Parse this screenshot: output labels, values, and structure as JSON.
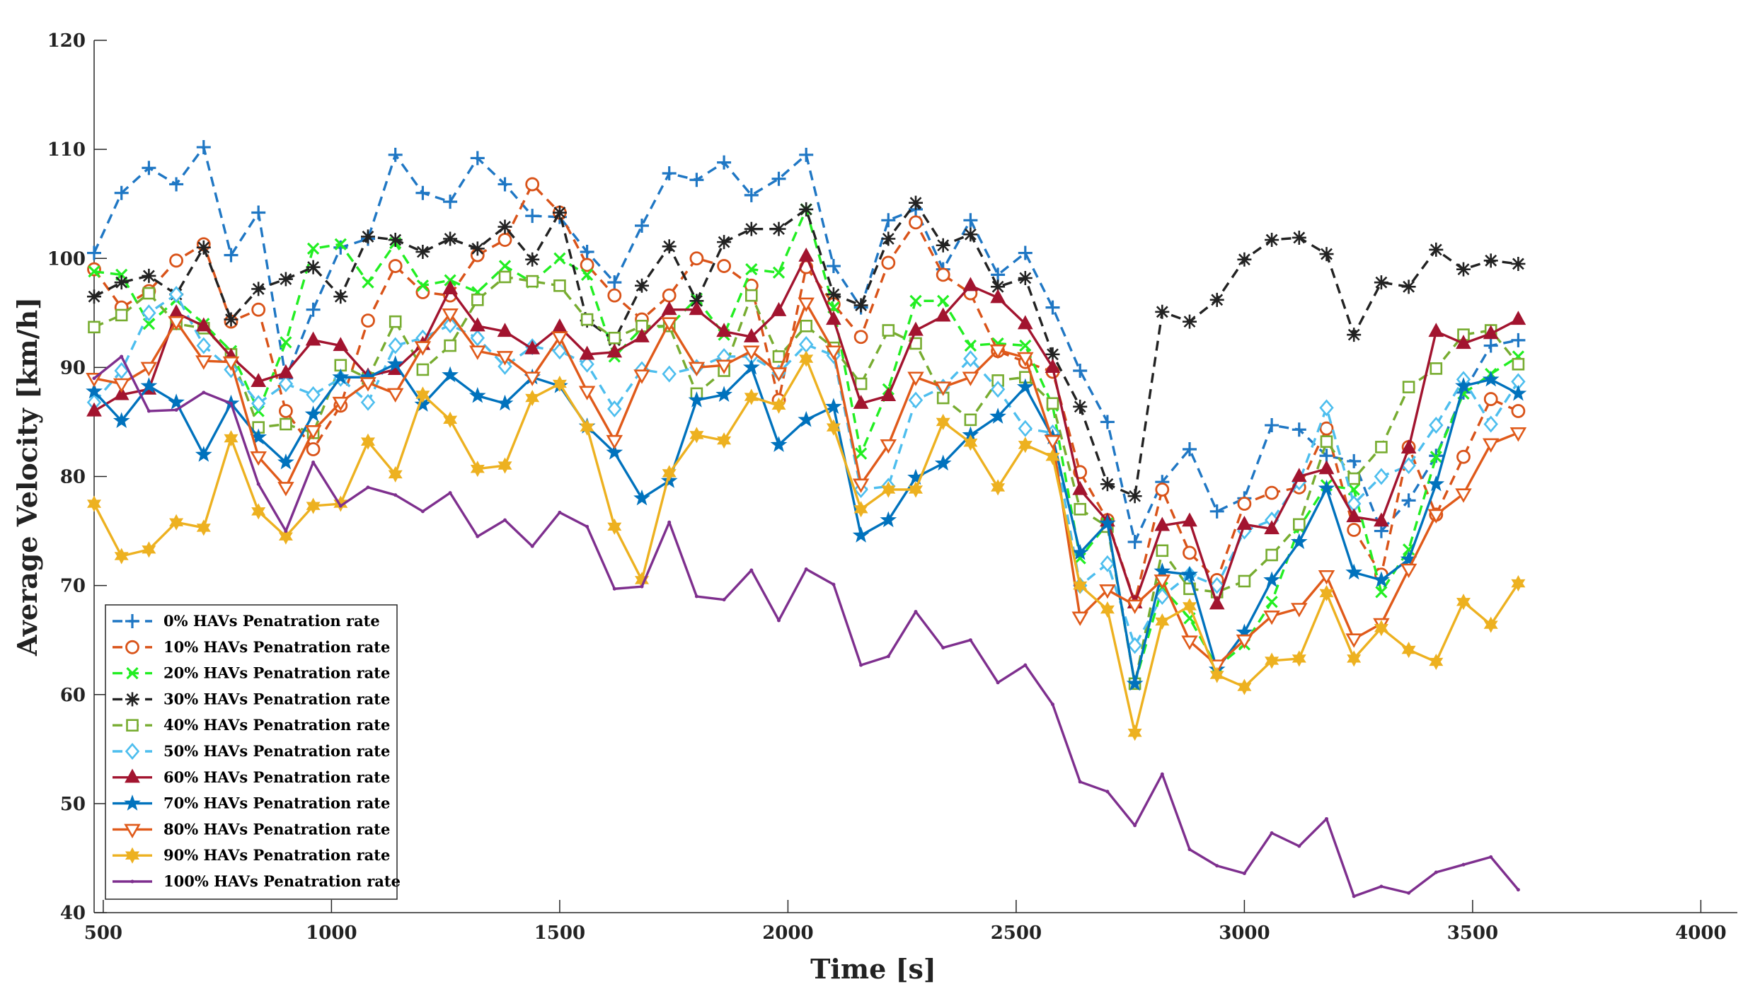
{
  "chart_data": {
    "type": "line",
    "title": "",
    "xlabel": "Time [s]",
    "ylabel": "Average Velocity [km/h]",
    "xlim": [
      480,
      4080
    ],
    "ylim": [
      40,
      120
    ],
    "xticks": [
      500,
      1000,
      1500,
      2000,
      2500,
      3000,
      3500,
      4000
    ],
    "yticks": [
      40,
      50,
      60,
      70,
      80,
      90,
      100,
      110,
      120
    ],
    "x": [
      480,
      540,
      600,
      660,
      720,
      780,
      840,
      900,
      960,
      1020,
      1080,
      1140,
      1200,
      1260,
      1320,
      1380,
      1440,
      1500,
      1560,
      1620,
      1680,
      1740,
      1800,
      1860,
      1920,
      1980,
      2040,
      2100,
      2160,
      2220,
      2280,
      2340,
      2400,
      2460,
      2520,
      2580,
      2640,
      2700,
      2760,
      2820,
      2880,
      2940,
      3000,
      3060,
      3120,
      3180,
      3240,
      3300,
      3360,
      3420,
      3480,
      3540,
      3600
    ],
    "legend_position": "bottom-left",
    "series": [
      {
        "name": "0% HAVs Penatration rate",
        "color": "#1f77c4",
        "dash": "dashed",
        "marker": "plus",
        "values": [
          100.5,
          106.0,
          108.3,
          106.8,
          110.2,
          100.3,
          104.2,
          89.0,
          95.3,
          101.0,
          101.8,
          109.5,
          106.0,
          105.2,
          109.2,
          106.8,
          103.9,
          103.8,
          100.6,
          97.8,
          103.0,
          107.8,
          107.2,
          108.8,
          105.8,
          107.3,
          109.5,
          99.3,
          95.5,
          103.5,
          104.5,
          99.0,
          103.5,
          98.5,
          100.5,
          95.5,
          89.7,
          85.0,
          74.0,
          79.5,
          82.5,
          76.8,
          78.0,
          84.7,
          84.3,
          81.9,
          81.4,
          75.0,
          77.8,
          81.9,
          87.7,
          92.0,
          92.5
        ]
      },
      {
        "name": "10% HAVs Penatration rate",
        "color": "#d95319",
        "dash": "dashed",
        "marker": "circle",
        "values": [
          99.0,
          95.5,
          97.0,
          99.8,
          101.3,
          94.2,
          95.3,
          86.0,
          82.5,
          86.5,
          94.3,
          99.3,
          96.9,
          96.6,
          100.3,
          101.7,
          106.8,
          104.2,
          99.4,
          96.6,
          94.4,
          96.6,
          100.0,
          99.3,
          97.5,
          87.0,
          99.2,
          95.8,
          92.8,
          99.6,
          103.3,
          98.5,
          96.8,
          91.5,
          90.5,
          89.6,
          80.4,
          76.0,
          68.5,
          78.8,
          73.0,
          70.5,
          77.5,
          78.5,
          79.0,
          84.4,
          75.1,
          71.0,
          82.7,
          76.5,
          81.8,
          87.1,
          86.0
        ]
      },
      {
        "name": "20% HAVs Penatration rate",
        "color": "#22ee22",
        "dash": "dashed",
        "marker": "x",
        "values": [
          98.8,
          98.5,
          94.0,
          96.2,
          94.0,
          91.5,
          86.0,
          92.3,
          100.9,
          101.3,
          97.8,
          101.4,
          97.5,
          98.0,
          96.9,
          99.3,
          97.8,
          100.0,
          98.5,
          91.0,
          93.6,
          93.8,
          96.3,
          93.0,
          99.0,
          98.7,
          104.5,
          95.5,
          82.1,
          88.0,
          96.1,
          96.1,
          92.0,
          92.2,
          92.0,
          86.5,
          72.5,
          75.7,
          61.0,
          69.8,
          67.0,
          62.5,
          64.6,
          68.5,
          75.3,
          79.2,
          78.8,
          69.4,
          73.3,
          81.8,
          87.6,
          89.4,
          91.0
        ]
      },
      {
        "name": "30% HAVs Penatration rate",
        "color": "#222222",
        "dash": "dashed",
        "marker": "asterisk",
        "values": [
          96.5,
          97.8,
          98.4,
          96.7,
          101.0,
          94.4,
          97.2,
          98.1,
          99.2,
          96.5,
          102.0,
          101.7,
          100.6,
          101.8,
          100.9,
          102.9,
          99.9,
          104.2,
          94.3,
          92.5,
          97.5,
          101.1,
          96.1,
          101.5,
          102.7,
          102.7,
          104.5,
          96.7,
          95.7,
          101.8,
          105.1,
          101.2,
          102.2,
          97.4,
          98.2,
          91.2,
          86.4,
          79.3,
          78.2,
          95.1,
          94.2,
          96.2,
          99.9,
          101.7,
          101.9,
          100.4,
          93.0,
          97.8,
          97.4,
          100.8,
          99.0,
          99.8,
          99.5
        ]
      },
      {
        "name": "40% HAVs Penatration rate",
        "color": "#77ac30",
        "dash": "dashed",
        "marker": "square",
        "values": [
          93.7,
          94.8,
          96.8,
          94.0,
          93.6,
          91.2,
          84.5,
          84.8,
          84.0,
          90.2,
          89.0,
          94.2,
          89.8,
          92.0,
          96.2,
          98.3,
          97.9,
          97.5,
          94.4,
          92.7,
          93.8,
          93.8,
          87.6,
          89.7,
          96.6,
          91.0,
          93.8,
          91.8,
          88.5,
          93.4,
          92.2,
          87.2,
          85.2,
          88.8,
          89.1,
          86.7,
          77.0,
          75.4,
          61.0,
          73.2,
          69.7,
          69.4,
          70.4,
          72.8,
          75.6,
          83.2,
          79.8,
          82.7,
          88.2,
          89.9,
          93.0,
          93.4,
          90.3
        ]
      },
      {
        "name": "50% HAVs Penatration rate",
        "color": "#4dbeee",
        "dash": "dashed",
        "marker": "diamond",
        "values": [
          86.8,
          89.7,
          95.0,
          96.7,
          92.0,
          89.8,
          86.7,
          88.5,
          87.5,
          89.0,
          86.8,
          92.0,
          92.7,
          93.9,
          92.7,
          90.1,
          91.9,
          91.5,
          90.3,
          86.2,
          89.8,
          89.4,
          90.0,
          91.0,
          91.0,
          89.5,
          92.1,
          91.1,
          78.8,
          79.1,
          87.0,
          88.2,
          90.8,
          88.0,
          84.4,
          84.0,
          70.0,
          72.0,
          64.5,
          69.0,
          71.0,
          70.0,
          75.0,
          76.0,
          79.5,
          86.3,
          77.5,
          80.0,
          81.0,
          84.7,
          88.9,
          84.8,
          88.7
        ]
      },
      {
        "name": "60% HAVs Penatration rate",
        "color": "#a2142f",
        "dash": "solid",
        "marker": "triangle-up",
        "values": [
          86.0,
          87.5,
          88.0,
          95.0,
          93.8,
          91.0,
          88.7,
          89.5,
          92.5,
          92.0,
          89.2,
          89.8,
          92.1,
          97.2,
          93.8,
          93.3,
          91.7,
          93.7,
          91.2,
          91.4,
          92.8,
          95.3,
          95.3,
          93.3,
          92.8,
          95.2,
          100.2,
          94.4,
          86.7,
          87.4,
          93.4,
          94.7,
          97.5,
          96.4,
          94.0,
          90.0,
          78.8,
          75.9,
          68.4,
          75.5,
          75.9,
          68.3,
          75.6,
          75.2,
          80.0,
          80.7,
          76.3,
          75.9,
          82.6,
          93.3,
          92.2,
          93.1,
          94.4
        ]
      },
      {
        "name": "70% HAVs Penatration rate",
        "color": "#0072bd",
        "dash": "solid",
        "marker": "star",
        "values": [
          87.8,
          85.1,
          88.3,
          86.8,
          82.0,
          86.7,
          83.6,
          81.3,
          85.7,
          89.1,
          89.1,
          90.3,
          86.6,
          89.3,
          87.4,
          86.7,
          89.1,
          88.3,
          84.6,
          82.2,
          78.0,
          79.6,
          87.0,
          87.5,
          90.0,
          82.9,
          85.2,
          86.4,
          74.6,
          76.0,
          79.9,
          81.2,
          83.8,
          85.5,
          88.2,
          83.6,
          73.0,
          75.7,
          61.0,
          71.3,
          71.0,
          62.3,
          65.7,
          70.5,
          74.0,
          78.9,
          71.2,
          70.5,
          72.4,
          79.3,
          88.3,
          88.9,
          87.6
        ]
      },
      {
        "name": "80% HAVs Penatration rate",
        "color": "#e05a1a",
        "dash": "solid",
        "marker": "triangle-down",
        "values": [
          89.0,
          88.5,
          90.0,
          94.2,
          90.6,
          90.5,
          81.8,
          79.0,
          84.2,
          86.8,
          88.6,
          87.6,
          91.9,
          94.9,
          91.5,
          91.0,
          89.1,
          92.8,
          87.8,
          83.3,
          89.3,
          94.1,
          90.0,
          90.2,
          91.5,
          89.5,
          95.9,
          91.5,
          79.3,
          82.9,
          89.1,
          88.2,
          89.1,
          91.6,
          90.9,
          83.3,
          67.1,
          69.6,
          68.2,
          70.5,
          64.9,
          62.7,
          65.0,
          67.2,
          67.9,
          70.9,
          65.1,
          66.5,
          71.5,
          76.5,
          78.4,
          83.0,
          84.0
        ]
      },
      {
        "name": "90% HAVs Penatration rate",
        "color": "#edb120",
        "dash": "solid",
        "marker": "hexagram",
        "values": [
          77.5,
          72.7,
          73.3,
          75.8,
          75.3,
          83.5,
          76.8,
          74.5,
          77.3,
          77.5,
          83.2,
          80.2,
          87.5,
          85.2,
          80.7,
          81.0,
          87.2,
          88.5,
          84.5,
          75.4,
          70.5,
          80.3,
          83.8,
          83.3,
          87.3,
          86.5,
          90.8,
          84.5,
          77.0,
          78.8,
          78.8,
          85.0,
          83.1,
          79.0,
          82.9,
          81.8,
          70.0,
          67.8,
          56.5,
          66.7,
          68.1,
          61.8,
          60.7,
          63.1,
          63.3,
          69.3,
          63.3,
          66.1,
          64.1,
          63.0,
          68.5,
          66.4,
          70.2
        ]
      },
      {
        "name": "100% HAVs Penatration rate",
        "color": "#7e2f8e",
        "dash": "solid",
        "marker": "dot",
        "values": [
          89.0,
          91.0,
          86.0,
          86.1,
          87.7,
          86.7,
          79.3,
          75.0,
          81.3,
          77.3,
          79.0,
          78.3,
          76.8,
          78.5,
          74.5,
          76.0,
          73.6,
          76.7,
          75.4,
          69.7,
          69.9,
          75.8,
          69.0,
          68.7,
          71.4,
          66.8,
          71.5,
          70.1,
          62.7,
          63.5,
          67.6,
          64.3,
          65.0,
          61.1,
          62.7,
          59.1,
          52.0,
          51.1,
          48.0,
          52.7,
          45.8,
          44.3,
          43.6,
          47.3,
          46.1,
          48.6,
          41.5,
          42.4,
          41.8,
          43.7,
          44.4,
          45.1,
          42.1
        ]
      }
    ]
  }
}
